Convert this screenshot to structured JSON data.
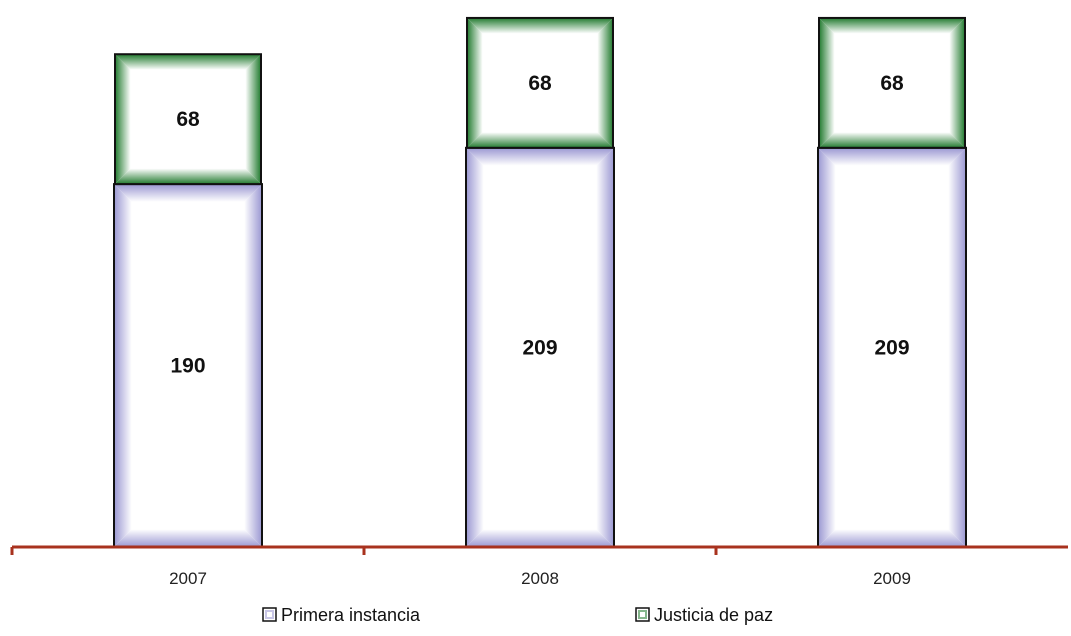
{
  "chart_data": {
    "type": "bar",
    "stacked": true,
    "categories": [
      "2007",
      "2008",
      "2009"
    ],
    "series": [
      {
        "name": "Primera instancia",
        "values": [
          190,
          209,
          209
        ],
        "data_labels": [
          "190",
          "209",
          "209"
        ],
        "color": "#9a97d2",
        "highlight": "#ffffff"
      },
      {
        "name": "Justicia de paz",
        "values": [
          68,
          68,
          68
        ],
        "data_labels": [
          "68",
          "68",
          "68"
        ],
        "color": "#217a2e",
        "highlight": "#ffffff"
      }
    ],
    "ylim": [
      0,
      290
    ],
    "axis_color": "#a8321e",
    "grid": false,
    "legend_position": "bottom",
    "title": "",
    "xlabel": "",
    "ylabel": ""
  }
}
